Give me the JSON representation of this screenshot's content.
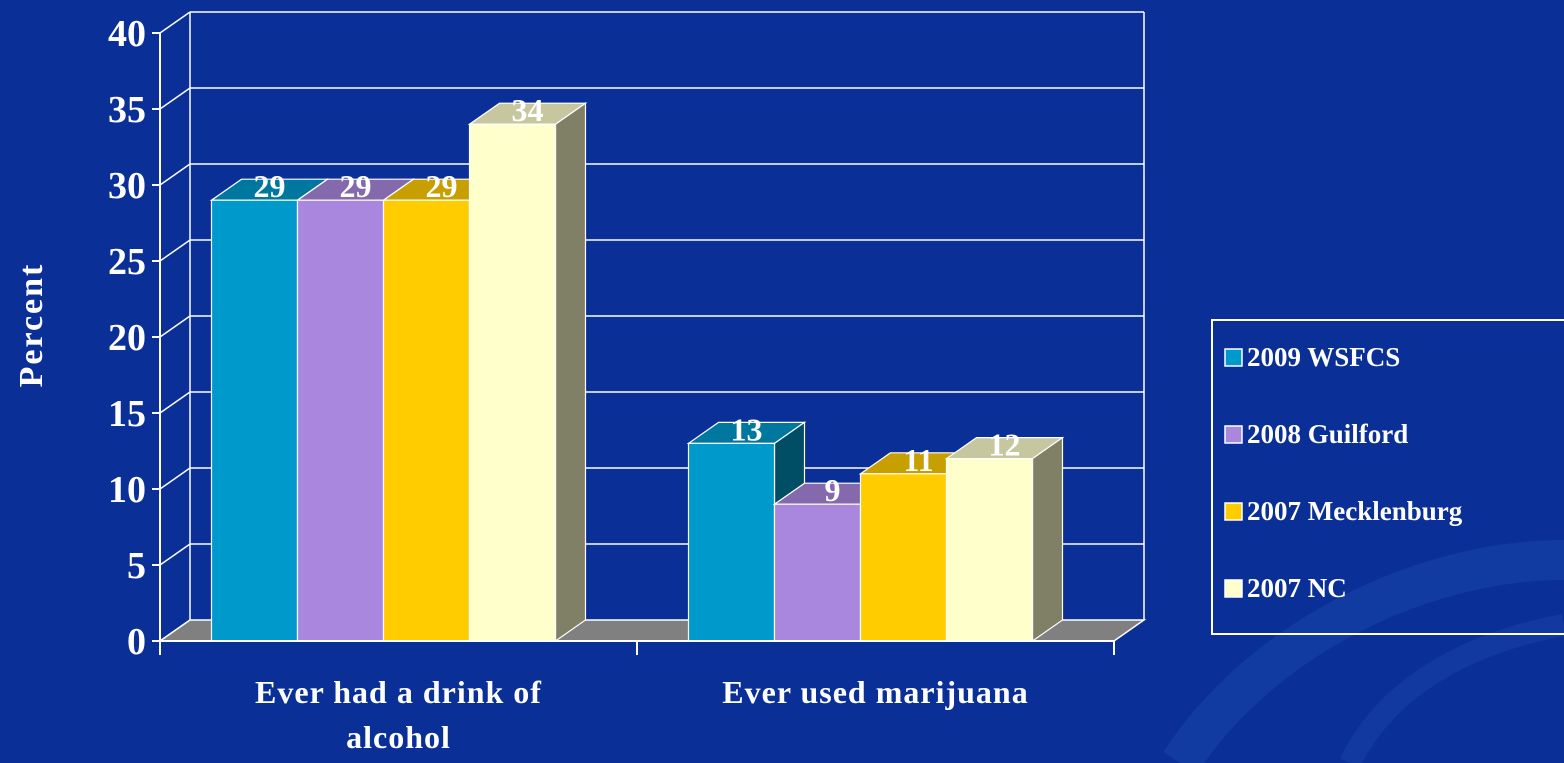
{
  "chart_data": {
    "type": "bar",
    "title": "",
    "xlabel": "",
    "ylabel": "Percent",
    "ylim": [
      0,
      40
    ],
    "yticks": [
      0,
      5,
      10,
      15,
      20,
      25,
      30,
      35,
      40
    ],
    "categories": [
      "Ever had a drink of alcohol",
      "Ever used marijuana"
    ],
    "series": [
      {
        "name": "2009 WSFCS",
        "values": [
          29,
          13
        ],
        "labels": [
          "29",
          "13"
        ],
        "color": "#0099cc"
      },
      {
        "name": "2008 Guilford",
        "values": [
          29,
          9
        ],
        "labels": [
          "29",
          "9"
        ],
        "color": "#a987de"
      },
      {
        "name": "2007 Mecklenburg",
        "values": [
          29,
          11
        ],
        "labels": [
          "29",
          "11"
        ],
        "color": "#ffcc00"
      },
      {
        "name": "2007 NC",
        "values": [
          34,
          12
        ],
        "labels": [
          "34",
          "12"
        ],
        "color": "#ffffcc"
      }
    ],
    "legend": {
      "position": "right"
    },
    "grid": true,
    "style": "3d-clustered-column"
  },
  "colors": {
    "background": "#0a2f96",
    "text": "#ffffff",
    "floor": "#808080"
  }
}
